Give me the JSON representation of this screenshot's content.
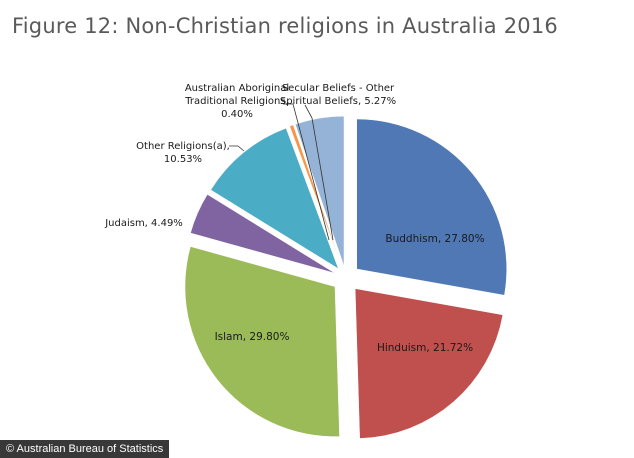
{
  "title": "Figure 12: Non-Christian religions in Australia 2016",
  "source": "© Australian Bureau of Statistics",
  "chart_data": {
    "type": "pie",
    "title": "Figure 12: Non-Christian religions in Australia 2016",
    "legend": "none",
    "slices": [
      {
        "name": "Buddhism",
        "value": 27.8,
        "label": "Buddhism, 27.80%",
        "color": "#4f78b5"
      },
      {
        "name": "Hinduism",
        "value": 21.72,
        "label": "Hinduism, 21.72%",
        "color": "#c0504d"
      },
      {
        "name": "Islam",
        "value": 29.8,
        "label": "Islam, 29.80%",
        "color": "#9bbb59"
      },
      {
        "name": "Judaism",
        "value": 4.49,
        "label": "Judaism, 4.49%",
        "color": "#8064a2"
      },
      {
        "name": "Other Religions(a)",
        "value": 10.53,
        "label_lines": [
          "Other Religions(a),",
          "10.53%"
        ],
        "color": "#4bacc6"
      },
      {
        "name": "Australian Aboriginal Traditional Religions",
        "value": 0.4,
        "label_lines": [
          "Australian Aboriginal",
          "Traditional Religions,",
          "0.40%"
        ],
        "color": "#f79646"
      },
      {
        "name": "Secular Beliefs - Other Spiritual Beliefs",
        "value": 5.27,
        "label_lines": [
          "Secular Beliefs - Other",
          "Spiritual Beliefs, 5.27%"
        ],
        "color": "#95b3d7"
      }
    ]
  }
}
